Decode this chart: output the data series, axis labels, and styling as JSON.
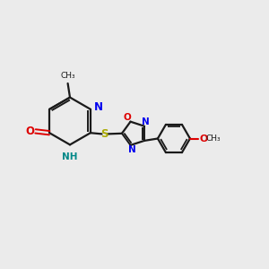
{
  "bg_color": "#ebebeb",
  "bond_color": "#1a1a1a",
  "N_color": "#0000ee",
  "O_color": "#dd0000",
  "S_color": "#aaaa00",
  "NH_color": "#008888",
  "figsize": [
    3.0,
    3.0
  ],
  "dpi": 100,
  "xlim": [
    0,
    10
  ],
  "ylim": [
    0,
    10
  ]
}
